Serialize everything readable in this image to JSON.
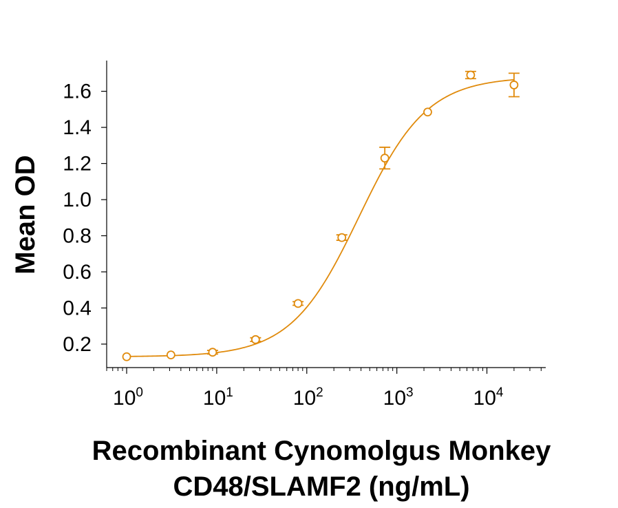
{
  "chart_data": {
    "type": "scatter",
    "title": "",
    "xlabel": "Recombinant Cynomolgus Monkey CD48/SLAMF2 (ng/mL)",
    "xlabel_lines": [
      "Recombinant Cynomolgus Monkey",
      "CD48/SLAMF2 (ng/mL)"
    ],
    "ylabel": "Mean OD",
    "x_scale": "log10",
    "xlim": [
      0.6,
      45000
    ],
    "ylim": [
      0.07,
      1.77
    ],
    "x_ticks": [
      1,
      10,
      100,
      1000,
      10000
    ],
    "x_tick_labels": [
      {
        "base": "10",
        "exp": "0"
      },
      {
        "base": "10",
        "exp": "1"
      },
      {
        "base": "10",
        "exp": "2"
      },
      {
        "base": "10",
        "exp": "3"
      },
      {
        "base": "10",
        "exp": "4"
      }
    ],
    "y_ticks": [
      0.2,
      0.4,
      0.6,
      0.8,
      1.0,
      1.2,
      1.4,
      1.6
    ],
    "y_tick_labels": [
      "0.2",
      "0.4",
      "0.6",
      "0.8",
      "1.0",
      "1.2",
      "1.4",
      "1.6"
    ],
    "grid": false,
    "legend": "none",
    "color": "#E08A0B",
    "series": [
      {
        "marker": "open-circle",
        "x": [
          1,
          3.1,
          9,
          27,
          80,
          245,
          735,
          2200,
          6600,
          20000
        ],
        "y": [
          0.13,
          0.14,
          0.155,
          0.225,
          0.425,
          0.79,
          1.23,
          1.485,
          1.69,
          1.635
        ],
        "error": [
          0,
          0,
          0.01,
          0.01,
          0.01,
          0.015,
          0.06,
          0,
          0.02,
          0.065
        ]
      }
    ],
    "fit_curve": {
      "model": "4PL",
      "bottom": 0.13,
      "top": 1.68,
      "ec50": 380,
      "hill": 1.15
    }
  }
}
